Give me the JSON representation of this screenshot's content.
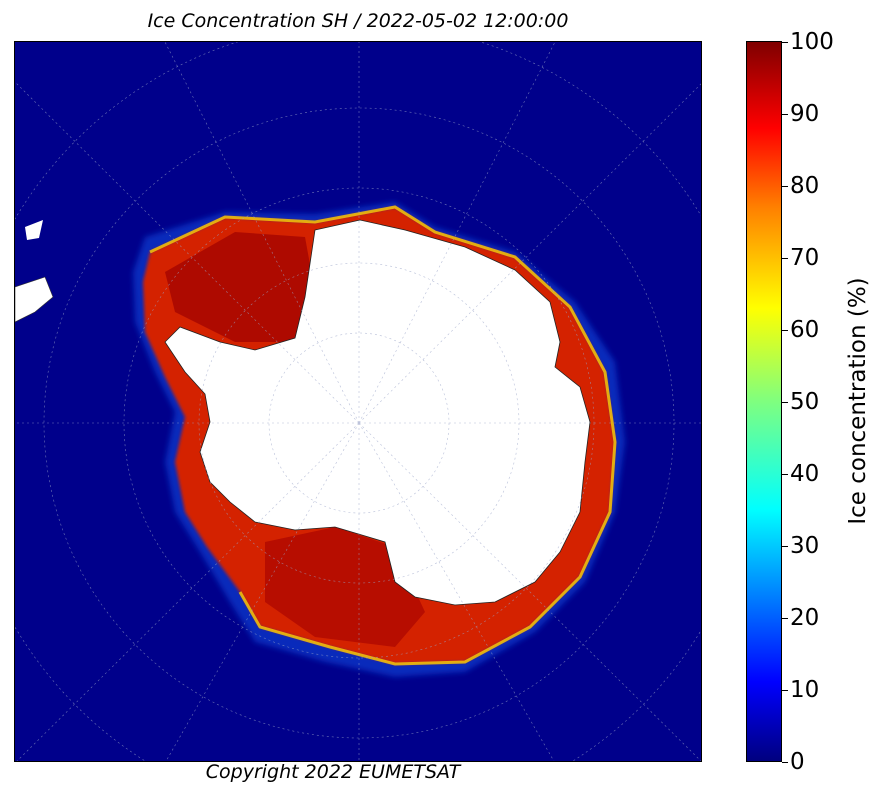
{
  "title": "Ice Concentration SH / 2022-05-02 12:00:00",
  "copyright": "Copyright 2022 EUMETSAT",
  "colorbar": {
    "label": "Ice concentration (%)",
    "ticks": [
      "0",
      "10",
      "20",
      "30",
      "40",
      "50",
      "60",
      "70",
      "80",
      "90",
      "100"
    ],
    "colors": {
      "ocean": "#00008b",
      "ice_high": "#c00000",
      "ice_mid": "#ff4000",
      "continent": "#ffffff"
    }
  }
}
